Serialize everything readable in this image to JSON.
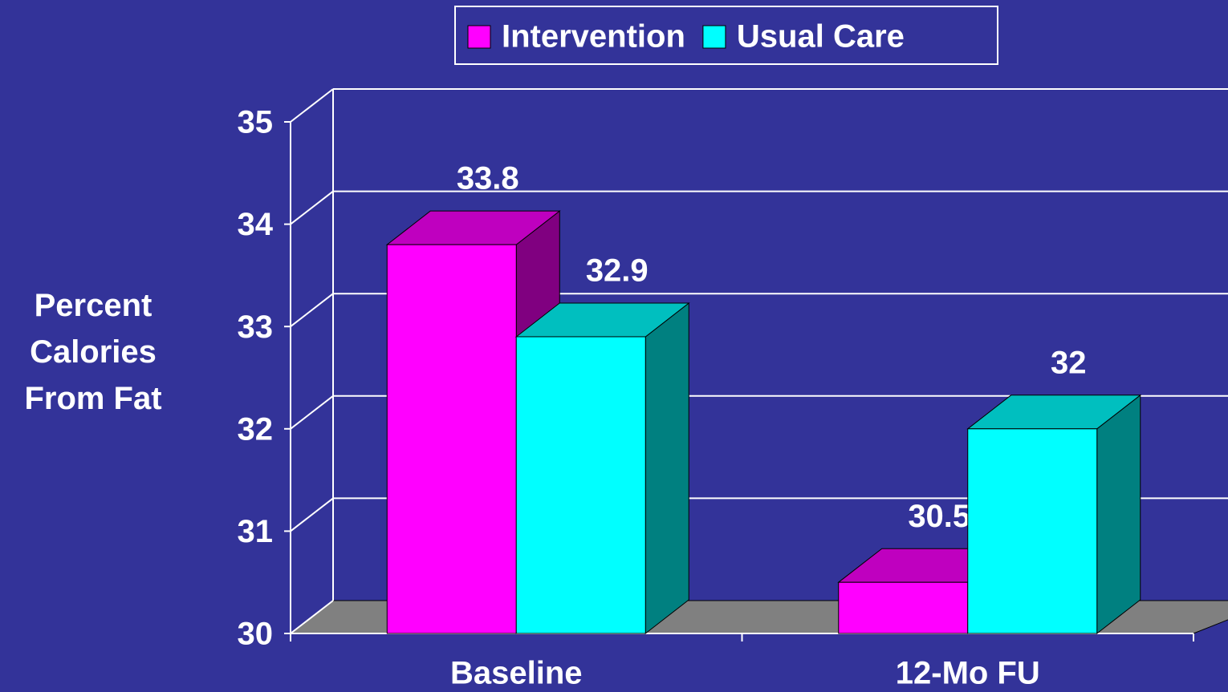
{
  "chart_data": {
    "type": "bar",
    "categories": [
      "Baseline",
      "12-Mo FU"
    ],
    "series": [
      {
        "name": "Intervention",
        "color": "#ff00ff",
        "values": [
          33.8,
          30.5
        ]
      },
      {
        "name": "Usual Care",
        "color": "#00ffff",
        "values": [
          32.9,
          32
        ]
      }
    ],
    "ylabel": "Percent Calories From Fat",
    "ylim": [
      30,
      35
    ],
    "yticks": [
      30,
      31,
      32,
      33,
      34,
      35
    ],
    "grid": true,
    "legend": "top"
  }
}
